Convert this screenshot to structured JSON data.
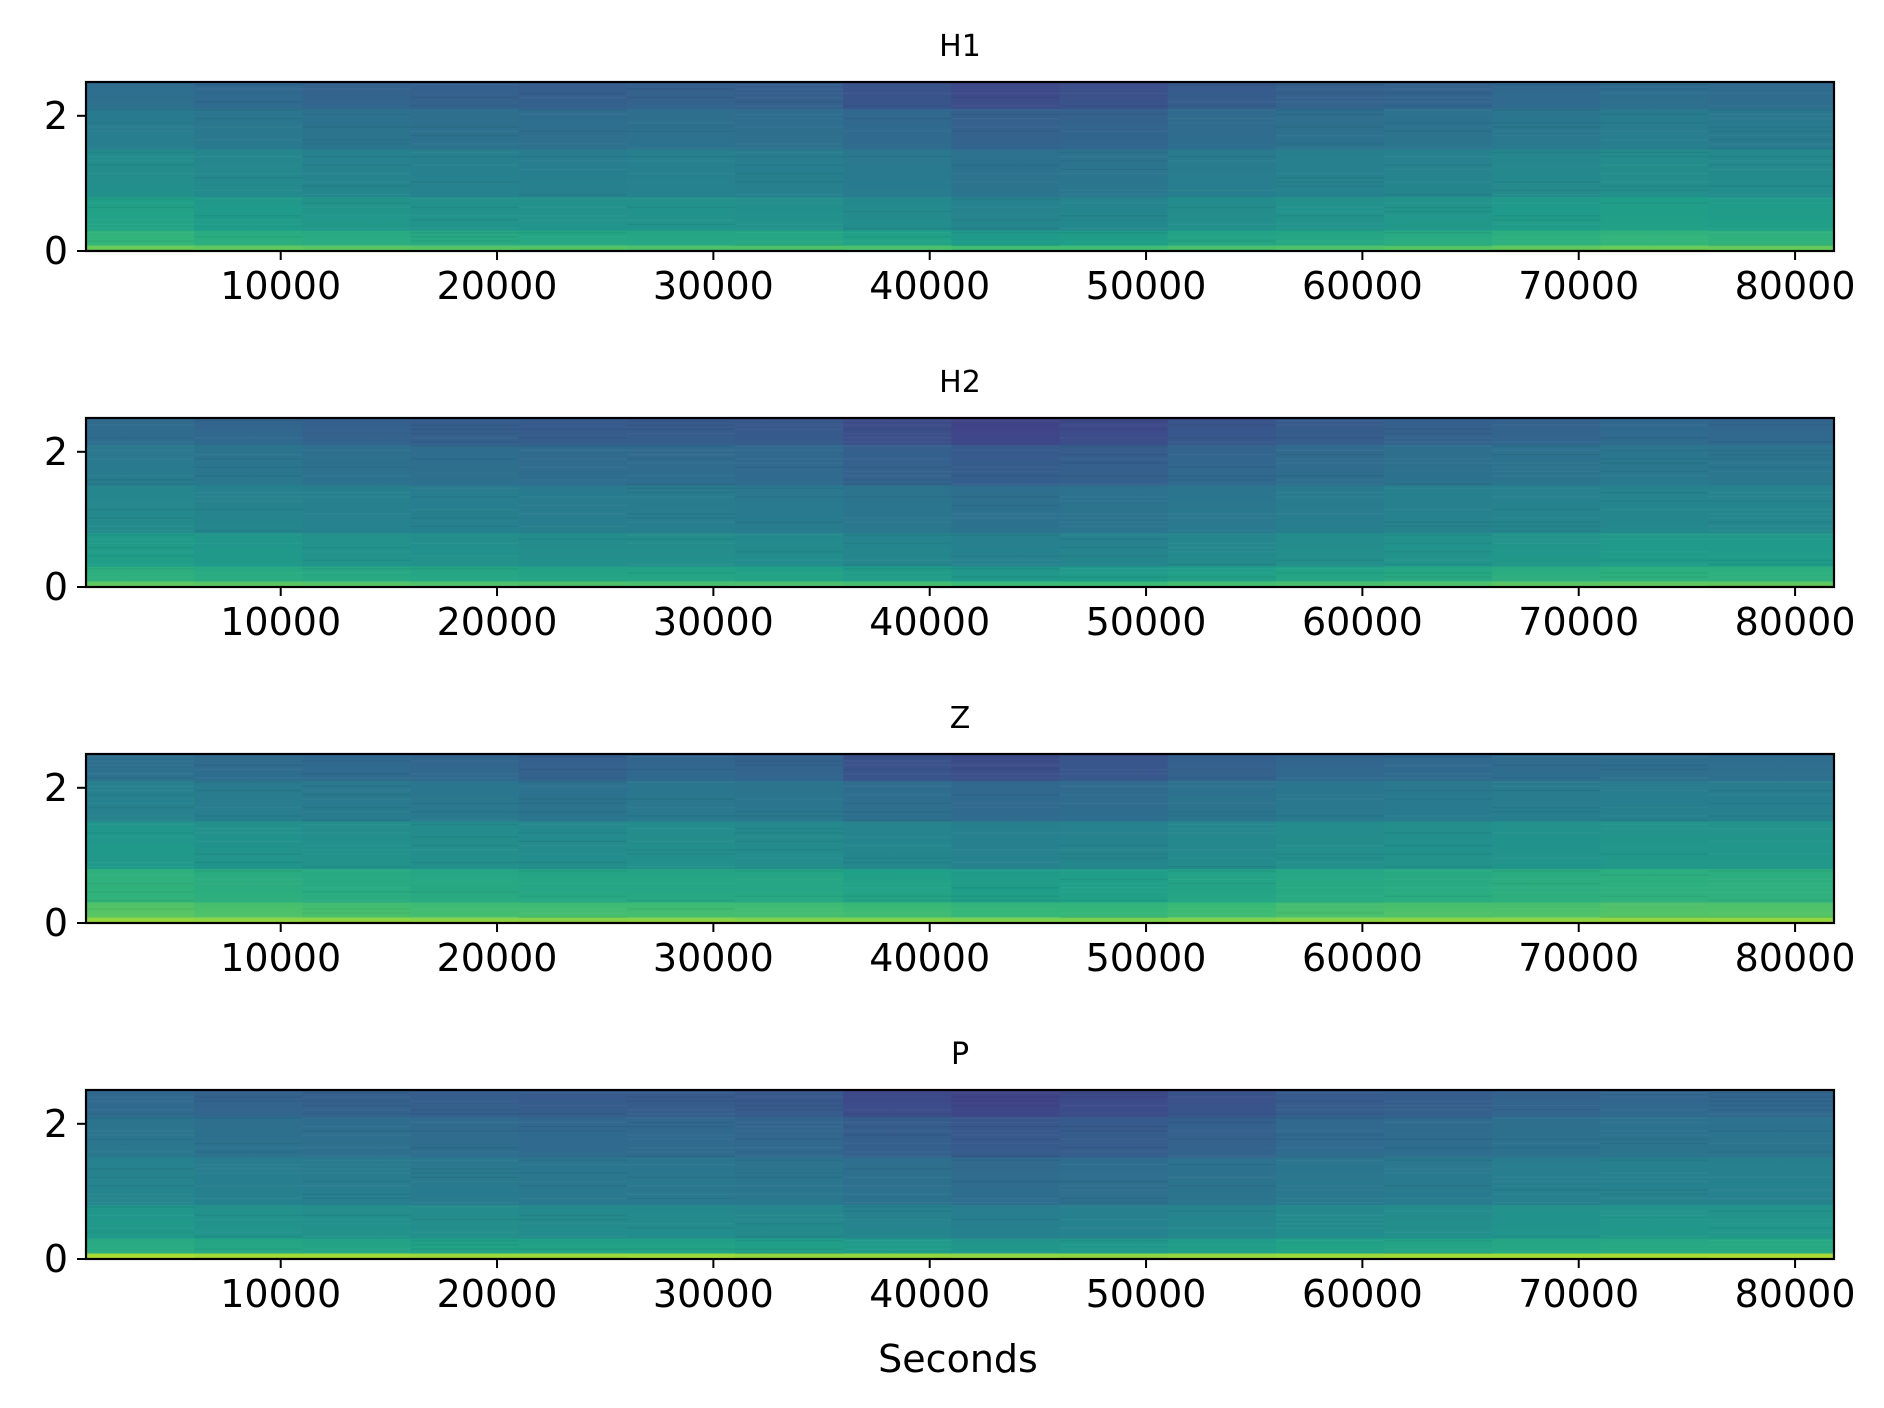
{
  "figure": {
    "xlabel": "Seconds"
  },
  "colormap": [
    "#440154",
    "#482878",
    "#3e4989",
    "#31688e",
    "#26828e",
    "#1f9e89",
    "#35b779",
    "#6ece58",
    "#b5de2b",
    "#fde725"
  ],
  "chart_data": [
    {
      "type": "heatmap",
      "title": "H1",
      "xlabel": "",
      "ylabel": "",
      "xlim": [
        1000,
        81800
      ],
      "ylim": [
        0,
        2.5
      ],
      "xticks": [
        10000,
        20000,
        30000,
        40000,
        50000,
        60000,
        70000,
        80000
      ],
      "yticks": [
        0,
        2
      ],
      "time_segments": [
        1000,
        6000,
        11000,
        16000,
        21000,
        26000,
        31000,
        36000,
        41000,
        46000,
        51000,
        56000,
        61000,
        66000,
        71000,
        76000,
        81800
      ],
      "bands": [
        {
          "y_from": 0.0,
          "y_to": 0.08,
          "level": [
            0.78,
            0.76,
            0.75,
            0.74,
            0.74,
            0.73,
            0.73,
            0.72,
            0.7,
            0.7,
            0.72,
            0.73,
            0.74,
            0.76,
            0.78,
            0.77
          ]
        },
        {
          "y_from": 0.08,
          "y_to": 0.3,
          "level": [
            0.66,
            0.63,
            0.62,
            0.61,
            0.6,
            0.6,
            0.6,
            0.58,
            0.55,
            0.56,
            0.59,
            0.6,
            0.62,
            0.64,
            0.66,
            0.65
          ]
        },
        {
          "y_from": 0.3,
          "y_to": 0.8,
          "level": [
            0.58,
            0.55,
            0.53,
            0.52,
            0.52,
            0.52,
            0.51,
            0.49,
            0.46,
            0.47,
            0.5,
            0.52,
            0.53,
            0.55,
            0.57,
            0.56
          ]
        },
        {
          "y_from": 0.8,
          "y_to": 1.5,
          "level": [
            0.5,
            0.48,
            0.46,
            0.45,
            0.44,
            0.45,
            0.44,
            0.42,
            0.39,
            0.4,
            0.43,
            0.45,
            0.46,
            0.48,
            0.5,
            0.49
          ]
        },
        {
          "y_from": 1.5,
          "y_to": 2.1,
          "level": [
            0.43,
            0.41,
            0.39,
            0.38,
            0.37,
            0.38,
            0.37,
            0.35,
            0.32,
            0.33,
            0.36,
            0.38,
            0.39,
            0.41,
            0.43,
            0.42
          ]
        },
        {
          "y_from": 2.1,
          "y_to": 2.5,
          "level": [
            0.37,
            0.35,
            0.33,
            0.32,
            0.31,
            0.32,
            0.31,
            0.27,
            0.24,
            0.26,
            0.3,
            0.32,
            0.33,
            0.35,
            0.37,
            0.36
          ]
        }
      ]
    },
    {
      "type": "heatmap",
      "title": "H2",
      "xlabel": "",
      "ylabel": "",
      "xlim": [
        1000,
        81800
      ],
      "ylim": [
        0,
        2.5
      ],
      "xticks": [
        10000,
        20000,
        30000,
        40000,
        50000,
        60000,
        70000,
        80000
      ],
      "yticks": [
        0,
        2
      ],
      "time_segments": [
        1000,
        6000,
        11000,
        16000,
        21000,
        26000,
        31000,
        36000,
        41000,
        46000,
        51000,
        56000,
        61000,
        66000,
        71000,
        76000,
        81800
      ],
      "bands": [
        {
          "y_from": 0.0,
          "y_to": 0.08,
          "level": [
            0.76,
            0.75,
            0.74,
            0.73,
            0.73,
            0.72,
            0.72,
            0.71,
            0.69,
            0.69,
            0.71,
            0.72,
            0.73,
            0.75,
            0.76,
            0.76
          ]
        },
        {
          "y_from": 0.08,
          "y_to": 0.3,
          "level": [
            0.64,
            0.62,
            0.61,
            0.6,
            0.59,
            0.59,
            0.58,
            0.56,
            0.54,
            0.55,
            0.57,
            0.59,
            0.61,
            0.63,
            0.64,
            0.64
          ]
        },
        {
          "y_from": 0.3,
          "y_to": 0.8,
          "level": [
            0.56,
            0.54,
            0.52,
            0.51,
            0.5,
            0.5,
            0.49,
            0.47,
            0.45,
            0.46,
            0.48,
            0.5,
            0.52,
            0.53,
            0.55,
            0.55
          ]
        },
        {
          "y_from": 0.8,
          "y_to": 1.5,
          "level": [
            0.48,
            0.46,
            0.45,
            0.44,
            0.43,
            0.43,
            0.42,
            0.4,
            0.38,
            0.39,
            0.41,
            0.43,
            0.45,
            0.46,
            0.47,
            0.47
          ]
        },
        {
          "y_from": 1.5,
          "y_to": 2.1,
          "level": [
            0.42,
            0.4,
            0.38,
            0.37,
            0.36,
            0.36,
            0.35,
            0.32,
            0.3,
            0.31,
            0.34,
            0.36,
            0.38,
            0.39,
            0.41,
            0.4
          ]
        },
        {
          "y_from": 2.1,
          "y_to": 2.5,
          "level": [
            0.36,
            0.34,
            0.32,
            0.31,
            0.3,
            0.3,
            0.29,
            0.25,
            0.22,
            0.24,
            0.28,
            0.3,
            0.32,
            0.33,
            0.35,
            0.34
          ]
        }
      ]
    },
    {
      "type": "heatmap",
      "title": "Z",
      "xlabel": "",
      "ylabel": "",
      "xlim": [
        1000,
        81800
      ],
      "ylim": [
        0,
        2.5
      ],
      "xticks": [
        10000,
        20000,
        30000,
        40000,
        50000,
        60000,
        70000,
        80000
      ],
      "yticks": [
        0,
        2
      ],
      "time_segments": [
        1000,
        6000,
        11000,
        16000,
        21000,
        26000,
        31000,
        36000,
        41000,
        46000,
        51000,
        56000,
        61000,
        66000,
        71000,
        76000,
        81800
      ],
      "bands": [
        {
          "y_from": 0.0,
          "y_to": 0.08,
          "level": [
            0.85,
            0.84,
            0.84,
            0.83,
            0.83,
            0.83,
            0.82,
            0.82,
            0.81,
            0.81,
            0.82,
            0.83,
            0.84,
            0.84,
            0.85,
            0.85
          ]
        },
        {
          "y_from": 0.08,
          "y_to": 0.3,
          "level": [
            0.74,
            0.72,
            0.71,
            0.7,
            0.7,
            0.7,
            0.7,
            0.69,
            0.67,
            0.67,
            0.69,
            0.71,
            0.72,
            0.72,
            0.73,
            0.73
          ]
        },
        {
          "y_from": 0.3,
          "y_to": 0.8,
          "level": [
            0.65,
            0.63,
            0.62,
            0.61,
            0.6,
            0.6,
            0.6,
            0.58,
            0.56,
            0.57,
            0.59,
            0.61,
            0.62,
            0.63,
            0.64,
            0.64
          ]
        },
        {
          "y_from": 0.8,
          "y_to": 1.5,
          "level": [
            0.54,
            0.52,
            0.51,
            0.5,
            0.49,
            0.5,
            0.49,
            0.47,
            0.45,
            0.46,
            0.48,
            0.5,
            0.51,
            0.52,
            0.53,
            0.53
          ]
        },
        {
          "y_from": 1.5,
          "y_to": 2.1,
          "level": [
            0.45,
            0.43,
            0.42,
            0.41,
            0.39,
            0.41,
            0.4,
            0.37,
            0.35,
            0.36,
            0.39,
            0.41,
            0.42,
            0.43,
            0.44,
            0.44
          ]
        },
        {
          "y_from": 2.1,
          "y_to": 2.5,
          "level": [
            0.38,
            0.36,
            0.35,
            0.34,
            0.32,
            0.34,
            0.33,
            0.27,
            0.25,
            0.28,
            0.32,
            0.34,
            0.35,
            0.36,
            0.37,
            0.37
          ]
        }
      ]
    },
    {
      "type": "heatmap",
      "title": "P",
      "xlabel": "Seconds",
      "ylabel": "",
      "xlim": [
        1000,
        81800
      ],
      "ylim": [
        0,
        2.5
      ],
      "xticks": [
        10000,
        20000,
        30000,
        40000,
        50000,
        60000,
        70000,
        80000
      ],
      "yticks": [
        0,
        2
      ],
      "time_segments": [
        1000,
        6000,
        11000,
        16000,
        21000,
        26000,
        31000,
        36000,
        41000,
        46000,
        51000,
        56000,
        61000,
        66000,
        71000,
        76000,
        81800
      ],
      "bands": [
        {
          "y_from": 0.0,
          "y_to": 0.08,
          "level": [
            0.88,
            0.87,
            0.87,
            0.86,
            0.86,
            0.86,
            0.85,
            0.85,
            0.84,
            0.84,
            0.85,
            0.86,
            0.87,
            0.87,
            0.88,
            0.88
          ]
        },
        {
          "y_from": 0.08,
          "y_to": 0.3,
          "level": [
            0.62,
            0.6,
            0.59,
            0.58,
            0.58,
            0.58,
            0.57,
            0.55,
            0.53,
            0.54,
            0.56,
            0.58,
            0.59,
            0.6,
            0.61,
            0.61
          ]
        },
        {
          "y_from": 0.3,
          "y_to": 0.8,
          "level": [
            0.54,
            0.52,
            0.51,
            0.5,
            0.49,
            0.49,
            0.48,
            0.46,
            0.44,
            0.45,
            0.47,
            0.49,
            0.5,
            0.52,
            0.53,
            0.53
          ]
        },
        {
          "y_from": 0.8,
          "y_to": 1.5,
          "level": [
            0.46,
            0.44,
            0.43,
            0.42,
            0.41,
            0.41,
            0.4,
            0.38,
            0.36,
            0.37,
            0.39,
            0.41,
            0.42,
            0.44,
            0.45,
            0.45
          ]
        },
        {
          "y_from": 1.5,
          "y_to": 2.1,
          "level": [
            0.4,
            0.38,
            0.37,
            0.36,
            0.35,
            0.35,
            0.34,
            0.31,
            0.29,
            0.3,
            0.32,
            0.35,
            0.36,
            0.38,
            0.39,
            0.39
          ]
        },
        {
          "y_from": 2.1,
          "y_to": 2.5,
          "level": [
            0.35,
            0.33,
            0.32,
            0.31,
            0.3,
            0.3,
            0.29,
            0.24,
            0.22,
            0.24,
            0.27,
            0.3,
            0.31,
            0.33,
            0.34,
            0.34
          ]
        }
      ]
    }
  ]
}
